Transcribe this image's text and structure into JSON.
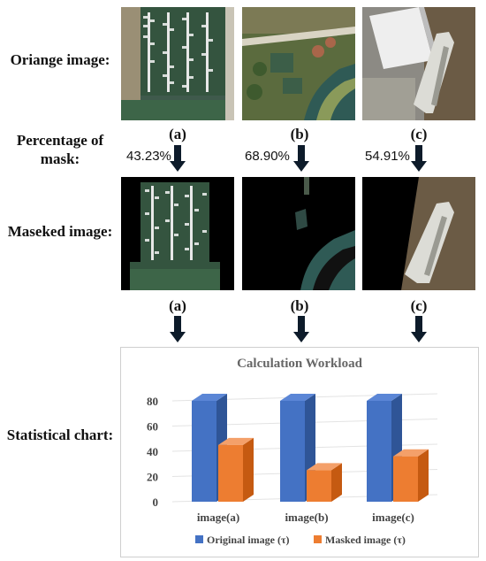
{
  "labels": {
    "original": "Oriange image:",
    "percentage_line1": "Percentage of",
    "percentage_line2": "mask:",
    "masked": "Maseked image:",
    "chart": "Statistical chart:"
  },
  "columns": [
    {
      "letter": "(a)",
      "percentage": "43.23%"
    },
    {
      "letter": "(b)",
      "percentage": "68.90%"
    },
    {
      "letter": "(c)",
      "percentage": "54.91%"
    }
  ],
  "colors": {
    "original_series": "#4472c4",
    "masked_series": "#ed7d31",
    "arrow": "#0d1b2a"
  },
  "chart_data": {
    "type": "bar",
    "title": "Calculation Workload",
    "categories": [
      "image(a)",
      "image(b)",
      "image(c)"
    ],
    "series": [
      {
        "name": "Original image (τ)",
        "values": [
          80,
          80,
          80
        ]
      },
      {
        "name": "Masked image (τ)",
        "values": [
          45,
          25,
          36
        ]
      }
    ],
    "yticks": [
      "0",
      "20",
      "40",
      "60",
      "80"
    ],
    "ylim": [
      0,
      80
    ],
    "grid": true,
    "legend": "bottom"
  }
}
